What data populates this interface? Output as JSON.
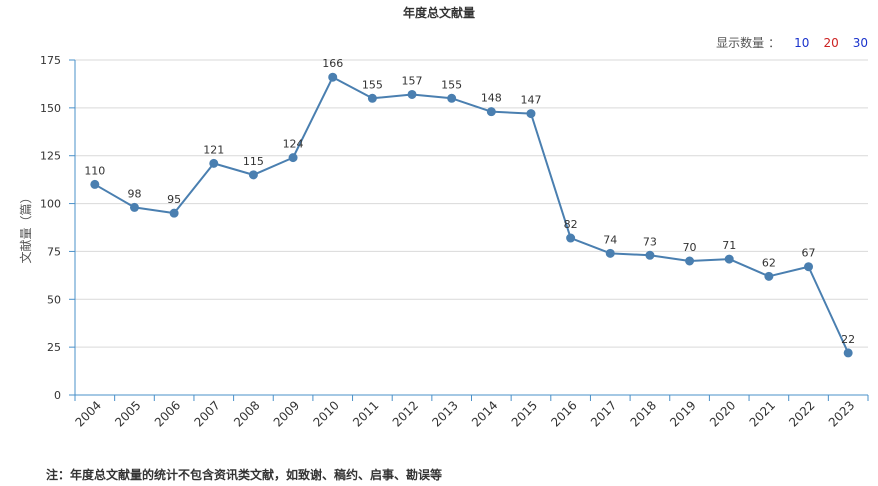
{
  "page": {
    "title": "年度总文献量",
    "count_selector": {
      "label": "显示数量",
      "separator": "：",
      "options": [
        "10",
        "20",
        "30"
      ]
    },
    "footnote": "注：年度总文献量的统计不包含资讯类文献，如致谢、稿约、启事、勘误等"
  },
  "colors": {
    "line": "#4a7fb0",
    "axis": "#4a90c8",
    "grid": "#d9d9d9"
  },
  "chart_data": {
    "type": "line",
    "title": "年度总文献量",
    "ylabel": "文献量（篇）",
    "xlabel": "",
    "ylim": [
      0,
      175
    ],
    "yticks": [
      0,
      25,
      50,
      75,
      100,
      125,
      150,
      175
    ],
    "grid": true,
    "categories": [
      "2004",
      "2005",
      "2006",
      "2007",
      "2008",
      "2009",
      "2010",
      "2011",
      "2012",
      "2013",
      "2014",
      "2015",
      "2016",
      "2017",
      "2018",
      "2019",
      "2020",
      "2021",
      "2022",
      "2023"
    ],
    "values": [
      110,
      98,
      95,
      121,
      115,
      124,
      166,
      155,
      157,
      155,
      148,
      147,
      82,
      74,
      73,
      70,
      71,
      62,
      67,
      22
    ]
  }
}
